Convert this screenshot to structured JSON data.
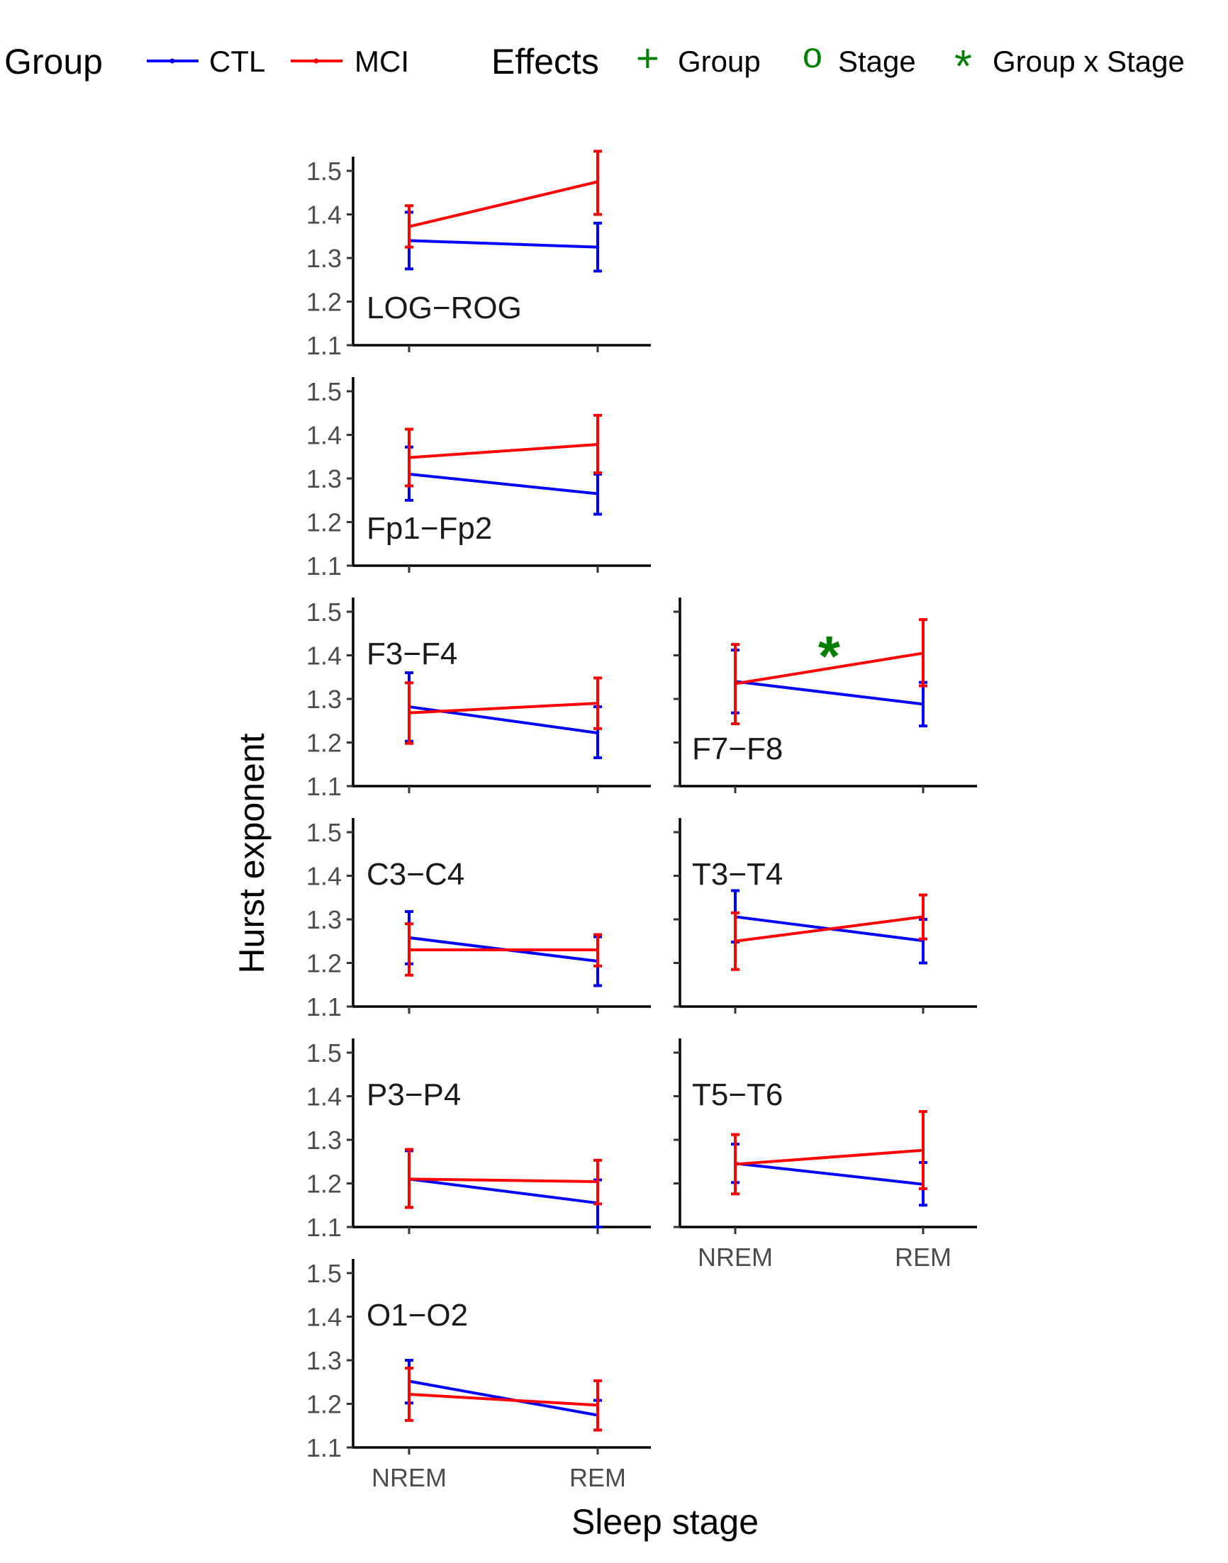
{
  "legend": {
    "group_title": "Group",
    "groups": [
      {
        "name": "CTL",
        "color": "#0000ff"
      },
      {
        "name": "MCI",
        "color": "#ff0000"
      }
    ],
    "effects_title": "Effects",
    "effects": [
      {
        "symbol": "+",
        "label": "Group"
      },
      {
        "symbol": "o",
        "label": "Stage"
      },
      {
        "symbol": "*",
        "label": "Group x Stage"
      }
    ],
    "effect_color": "#008000"
  },
  "chart_data": {
    "type": "line",
    "xlabel": "Sleep stage",
    "ylabel": "Hurst exponent",
    "categories": [
      "NREM",
      "REM"
    ],
    "ylim": [
      1.1,
      1.5
    ],
    "yticks": [
      "1.1",
      "1.2",
      "1.3",
      "1.4",
      "1.5"
    ],
    "grid": false,
    "legend_position": "top",
    "panels": [
      {
        "label": "LOG−ROG",
        "effect": "",
        "series": [
          {
            "name": "CTL",
            "values": [
              1.34,
              1.325
            ],
            "lower": [
              1.275,
              1.27
            ],
            "upper": [
              1.405,
              1.38
            ]
          },
          {
            "name": "MCI",
            "values": [
              1.372,
              1.475
            ],
            "lower": [
              1.325,
              1.4
            ],
            "upper": [
              1.42,
              1.545
            ]
          }
        ]
      },
      {
        "label": "Fp1−Fp2",
        "effect": "",
        "series": [
          {
            "name": "CTL",
            "values": [
              1.31,
              1.265
            ],
            "lower": [
              1.25,
              1.218
            ],
            "upper": [
              1.372,
              1.31
            ]
          },
          {
            "name": "MCI",
            "values": [
              1.348,
              1.378
            ],
            "lower": [
              1.283,
              1.313
            ],
            "upper": [
              1.413,
              1.445
            ]
          }
        ]
      },
      {
        "label": "F3−F4",
        "effect": "",
        "series": [
          {
            "name": "CTL",
            "values": [
              1.282,
              1.222
            ],
            "lower": [
              1.203,
              1.165
            ],
            "upper": [
              1.36,
              1.282
            ]
          },
          {
            "name": "MCI",
            "values": [
              1.268,
              1.29
            ],
            "lower": [
              1.198,
              1.232
            ],
            "upper": [
              1.337,
              1.348
            ]
          }
        ]
      },
      {
        "label": "F7−F8",
        "effect": "*",
        "series": [
          {
            "name": "CTL",
            "values": [
              1.34,
              1.288
            ],
            "lower": [
              1.268,
              1.238
            ],
            "upper": [
              1.412,
              1.338
            ]
          },
          {
            "name": "MCI",
            "values": [
              1.335,
              1.405
            ],
            "lower": [
              1.243,
              1.33
            ],
            "upper": [
              1.425,
              1.482
            ]
          }
        ]
      },
      {
        "label": "C3−C4",
        "effect": "",
        "series": [
          {
            "name": "CTL",
            "values": [
              1.258,
              1.204
            ],
            "lower": [
              1.198,
              1.148
            ],
            "upper": [
              1.318,
              1.26
            ]
          },
          {
            "name": "MCI",
            "values": [
              1.23,
              1.23
            ],
            "lower": [
              1.172,
              1.193
            ],
            "upper": [
              1.29,
              1.265
            ]
          }
        ]
      },
      {
        "label": "T3−T4",
        "effect": "",
        "series": [
          {
            "name": "CTL",
            "values": [
              1.306,
              1.251
            ],
            "lower": [
              1.248,
              1.2
            ],
            "upper": [
              1.366,
              1.3
            ]
          },
          {
            "name": "MCI",
            "values": [
              1.25,
              1.306
            ],
            "lower": [
              1.185,
              1.255
            ],
            "upper": [
              1.315,
              1.356
            ]
          }
        ]
      },
      {
        "label": "P3−P4",
        "effect": "",
        "series": [
          {
            "name": "CTL",
            "values": [
              1.21,
              1.155
            ],
            "lower": [
              1.145,
              1.1
            ],
            "upper": [
              1.275,
              1.208
            ]
          },
          {
            "name": "MCI",
            "values": [
              1.21,
              1.204
            ],
            "lower": [
              1.145,
              1.153
            ],
            "upper": [
              1.278,
              1.253
            ]
          }
        ]
      },
      {
        "label": "T5−T6",
        "effect": "",
        "series": [
          {
            "name": "CTL",
            "values": [
              1.246,
              1.198
            ],
            "lower": [
              1.202,
              1.15
            ],
            "upper": [
              1.29,
              1.248
            ]
          },
          {
            "name": "MCI",
            "values": [
              1.244,
              1.276
            ],
            "lower": [
              1.176,
              1.188
            ],
            "upper": [
              1.312,
              1.365
            ]
          }
        ]
      },
      {
        "label": "O1−O2",
        "effect": "",
        "series": [
          {
            "name": "CTL",
            "values": [
              1.252,
              1.174
            ],
            "lower": [
              1.202,
              1.14
            ],
            "upper": [
              1.3,
              1.208
            ]
          },
          {
            "name": "MCI",
            "values": [
              1.222,
              1.197
            ],
            "lower": [
              1.162,
              1.14
            ],
            "upper": [
              1.282,
              1.253
            ]
          }
        ]
      }
    ]
  }
}
